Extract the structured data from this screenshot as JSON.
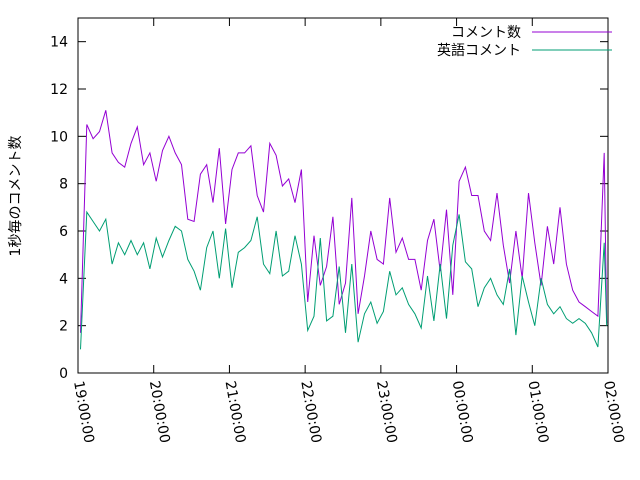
{
  "chart_data": {
    "type": "line",
    "y_label": "1秒毎のコメント数",
    "x": [
      "19:02:00",
      "19:07:00",
      "19:12:00",
      "19:17:00",
      "19:22:00",
      "19:27:00",
      "19:32:00",
      "19:37:00",
      "19:42:00",
      "19:47:00",
      "19:52:00",
      "19:57:00",
      "20:02:00",
      "20:07:00",
      "20:12:00",
      "20:17:00",
      "20:22:00",
      "20:27:00",
      "20:32:00",
      "20:37:00",
      "20:42:00",
      "20:47:00",
      "20:52:00",
      "20:57:00",
      "21:02:00",
      "21:07:00",
      "21:12:00",
      "21:17:00",
      "21:22:00",
      "21:27:00",
      "21:32:00",
      "21:37:00",
      "21:42:00",
      "21:47:00",
      "21:52:00",
      "21:57:00",
      "22:02:00",
      "22:07:00",
      "22:12:00",
      "22:17:00",
      "22:22:00",
      "22:27:00",
      "22:32:00",
      "22:37:00",
      "22:42:00",
      "22:47:00",
      "22:52:00",
      "22:57:00",
      "23:02:00",
      "23:07:00",
      "23:12:00",
      "23:17:00",
      "23:22:00",
      "23:27:00",
      "23:32:00",
      "23:37:00",
      "23:42:00",
      "23:47:00",
      "23:52:00",
      "23:57:00",
      "00:02:00",
      "00:07:00",
      "00:12:00",
      "00:17:00",
      "00:22:00",
      "00:27:00",
      "00:32:00",
      "00:37:00",
      "00:42:00",
      "00:47:00",
      "00:52:00",
      "00:57:00",
      "01:02:00",
      "01:07:00",
      "01:12:00",
      "01:17:00",
      "01:22:00",
      "01:27:00",
      "01:32:00",
      "01:37:00",
      "01:42:00",
      "01:47:00",
      "01:52:00",
      "01:57:00",
      "01:59:00"
    ],
    "series": [
      {
        "name": "コメント数",
        "color": "#9400d3",
        "values": [
          1.7,
          10.5,
          9.9,
          10.2,
          11.1,
          9.3,
          8.9,
          8.7,
          9.7,
          10.4,
          8.8,
          9.3,
          8.1,
          9.4,
          10.0,
          9.3,
          8.8,
          6.5,
          6.4,
          8.4,
          8.8,
          7.2,
          9.5,
          6.3,
          8.6,
          9.3,
          9.3,
          9.6,
          7.5,
          6.8,
          9.7,
          9.2,
          7.9,
          8.2,
          7.2,
          8.6,
          3.0,
          5.8,
          3.7,
          4.5,
          6.6,
          2.9,
          3.8,
          7.4,
          2.5,
          4.1,
          6.0,
          4.8,
          4.6,
          7.4,
          5.1,
          5.7,
          4.8,
          4.8,
          3.5,
          5.6,
          6.5,
          4.3,
          6.9,
          3.3,
          8.1,
          8.7,
          7.5,
          7.5,
          6.0,
          5.6,
          7.6,
          5.4,
          3.8,
          6.0,
          4.0,
          7.6,
          5.5,
          3.7,
          6.2,
          4.6,
          7.0,
          4.6,
          3.5,
          3.0,
          2.8,
          2.6,
          2.4,
          9.3,
          2.1
        ]
      },
      {
        "name": "英語コメント",
        "color": "#009e73",
        "values": [
          1.0,
          6.8,
          6.4,
          6.0,
          6.5,
          4.6,
          5.5,
          5.0,
          5.6,
          5.0,
          5.5,
          4.4,
          5.7,
          4.9,
          5.6,
          6.2,
          6.0,
          4.8,
          4.3,
          3.5,
          5.3,
          6.0,
          4.0,
          6.1,
          3.6,
          5.1,
          5.3,
          5.6,
          6.6,
          4.6,
          4.2,
          6.0,
          4.1,
          4.3,
          5.8,
          4.6,
          1.8,
          2.4,
          5.7,
          2.2,
          2.4,
          4.5,
          1.7,
          4.6,
          1.3,
          2.5,
          3.0,
          2.1,
          2.6,
          4.3,
          3.3,
          3.6,
          2.9,
          2.5,
          1.9,
          4.1,
          2.2,
          4.6,
          2.3,
          5.4,
          6.7,
          4.7,
          4.4,
          2.8,
          3.6,
          4.0,
          3.3,
          2.9,
          4.4,
          1.6,
          4.1,
          3.0,
          2.0,
          4.0,
          2.9,
          2.5,
          2.8,
          2.3,
          2.1,
          2.3,
          2.1,
          1.7,
          1.1,
          5.5,
          2.0
        ]
      }
    ],
    "xlim": [
      "19:00:00",
      "02:00:00"
    ],
    "xticks": [
      "19:00:00",
      "20:00:00",
      "21:00:00",
      "22:00:00",
      "23:00:00",
      "00:00:00",
      "01:00:00",
      "02:00:00"
    ],
    "ylim": [
      0,
      15
    ],
    "yticks": [
      0,
      2,
      4,
      6,
      8,
      10,
      12,
      14
    ],
    "legend": "top-right"
  }
}
